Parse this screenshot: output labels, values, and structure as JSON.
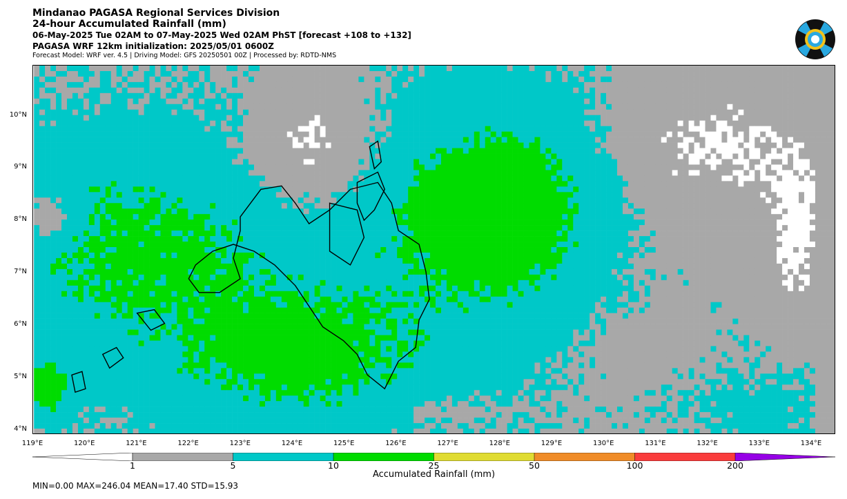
{
  "header": {
    "line1": "Mindanao PAGASA Regional Services Division",
    "line2": "24-hour Accumulated Rainfall (mm)",
    "line3": "06-May-2025 Tue 02AM to 07-May-2025 Wed 02AM PhST [forecast +108 to +132]",
    "line4": "PAGASA WRF 12km initialization: 2025/05/01 0600Z",
    "line5": "Forecast Model: WRF ver. 4.5 | Driving Model: GFS 20250501 00Z | Processed by: RDTD-NMS"
  },
  "map": {
    "lat_labels": [
      "10°N",
      "9°N",
      "8°N",
      "7°N",
      "6°N",
      "5°N",
      "4°N"
    ],
    "lon_labels": [
      "119°E",
      "120°E",
      "121°E",
      "122°E",
      "123°E",
      "124°E",
      "125°E",
      "126°E",
      "127°E",
      "128°E",
      "129°E",
      "130°E",
      "131°E",
      "132°E",
      "133°E",
      "134°E"
    ]
  },
  "colorbar": {
    "tick_labels": [
      "1",
      "5",
      "10",
      "25",
      "50",
      "100",
      "200"
    ],
    "title": "Accumulated Rainfall (mm)",
    "bins": [
      {
        "color": "#ffffff",
        "from": 0,
        "to": 1
      },
      {
        "color": "#a8a8a8",
        "from": 1,
        "to": 5
      },
      {
        "color": "#00c8c8",
        "from": 5,
        "to": 10
      },
      {
        "color": "#00dc00",
        "from": 10,
        "to": 25
      },
      {
        "color": "#e0dc32",
        "from": 25,
        "to": 50
      },
      {
        "color": "#f08c28",
        "from": 50,
        "to": 100
      },
      {
        "color": "#fa3c3c",
        "from": 100,
        "to": 200
      },
      {
        "color": "#9600e6",
        "from": 200,
        "to": null
      }
    ]
  },
  "stats": "MIN=0.00   MAX=246.04   MEAN=17.40   STD=15.93"
}
